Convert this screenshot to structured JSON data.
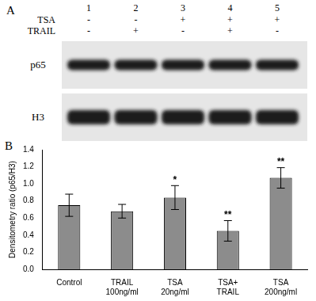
{
  "panel_a": {
    "label": "A",
    "lanes": [
      "1",
      "2",
      "3",
      "4",
      "5"
    ],
    "treatments": [
      {
        "name": "TSA",
        "signs": [
          "-",
          "-",
          "+",
          "+",
          "+"
        ]
      },
      {
        "name": "TRAIL",
        "signs": [
          "-",
          "+",
          "-",
          "+",
          "-"
        ]
      }
    ],
    "bands": [
      "p65",
      "H3"
    ]
  },
  "panel_b": {
    "label": "B"
  },
  "chart_data": {
    "type": "bar",
    "y_label": "Densitometry ratio (p65/H3)",
    "categories": [
      "Control",
      [
        "TRAIL",
        "100ng/ml"
      ],
      [
        "TSA",
        "20ng/ml"
      ],
      [
        "TSA+",
        "TRAIL"
      ],
      [
        "TSA",
        "200ng/ml"
      ]
    ],
    "values": [
      0.75,
      0.68,
      0.84,
      0.45,
      1.07
    ],
    "errors": [
      0.13,
      0.08,
      0.14,
      0.12,
      0.12
    ],
    "significance": [
      null,
      null,
      "*",
      "**",
      "**"
    ],
    "color": "#8c8c8c",
    "ylim": [
      0,
      1.4
    ],
    "yticks": [
      {
        "value": 0,
        "label": "0.0"
      },
      0.2,
      0.4,
      0.6,
      0.8,
      {
        "value": 1,
        "label": "1.0"
      },
      1.2,
      1.4
    ],
    "grid": false
  }
}
